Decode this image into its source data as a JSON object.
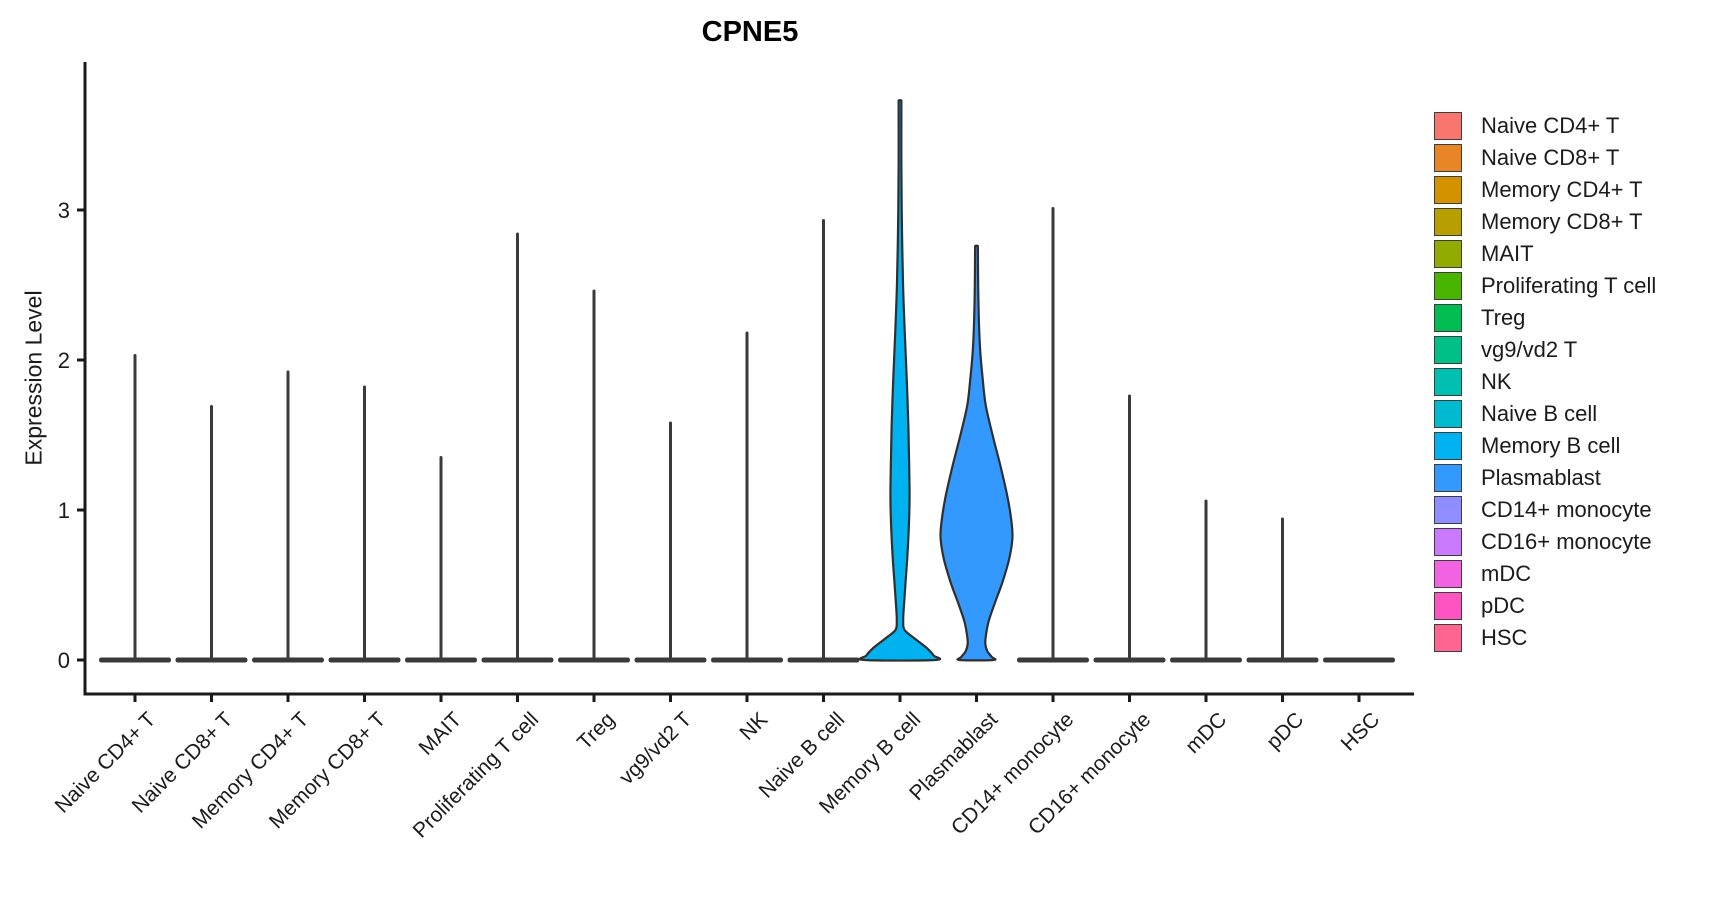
{
  "chart_data": {
    "type": "violin",
    "title": "CPNE5",
    "ylabel": "Expression Level",
    "xlabel": "",
    "ylim": [
      0,
      3.9
    ],
    "yticks": [
      0,
      1,
      2,
      3
    ],
    "grid": false,
    "legend_position": "right",
    "outline_color": "#3A3A3A",
    "axis_color": "#1a1a1a",
    "text_color": "#1b1b1b",
    "baseline_bar": {
      "halfwidth_frac": 0.47,
      "thickness": 5
    },
    "series": [
      {
        "name": "Naive CD4+ T",
        "color": "#F8766D",
        "max_expression": 2.03
      },
      {
        "name": "Naive CD8+ T",
        "color": "#E88526",
        "max_expression": 1.69
      },
      {
        "name": "Memory CD4+ T",
        "color": "#D39200",
        "max_expression": 1.92
      },
      {
        "name": "Memory CD8+ T",
        "color": "#B79F00",
        "max_expression": 1.82
      },
      {
        "name": "MAIT",
        "color": "#93AA00",
        "max_expression": 1.35
      },
      {
        "name": "Proliferating T cell",
        "color": "#49B500",
        "max_expression": 2.84
      },
      {
        "name": "Treg",
        "color": "#00BC51",
        "max_expression": 2.46
      },
      {
        "name": "vg9/vd2 T",
        "color": "#00C087",
        "max_expression": 1.58
      },
      {
        "name": "NK",
        "color": "#00C0B2",
        "max_expression": 2.18
      },
      {
        "name": "Naive B cell",
        "color": "#00BBD0",
        "max_expression": 2.93
      },
      {
        "name": "Memory B cell",
        "color": "#00B2F0",
        "max_expression": 3.73,
        "profile": [
          [
            3.73,
            0.018
          ],
          [
            3.3,
            0.018
          ],
          [
            2.9,
            0.025
          ],
          [
            2.5,
            0.04
          ],
          [
            2.15,
            0.065
          ],
          [
            1.85,
            0.09
          ],
          [
            1.55,
            0.11
          ],
          [
            1.3,
            0.12
          ],
          [
            1.08,
            0.125
          ],
          [
            0.88,
            0.115
          ],
          [
            0.68,
            0.095
          ],
          [
            0.5,
            0.07
          ],
          [
            0.35,
            0.05
          ],
          [
            0.26,
            0.042
          ],
          [
            0.2,
            0.06
          ],
          [
            0.14,
            0.2
          ],
          [
            0.08,
            0.35
          ],
          [
            0.03,
            0.44
          ],
          [
            0.0,
            0.46
          ]
        ]
      },
      {
        "name": "Plasmablast",
        "color": "#3399FF",
        "max_expression": 2.76,
        "profile": [
          [
            2.76,
            0.018
          ],
          [
            2.5,
            0.022
          ],
          [
            2.25,
            0.032
          ],
          [
            2.05,
            0.05
          ],
          [
            1.88,
            0.08
          ],
          [
            1.7,
            0.12
          ],
          [
            1.5,
            0.21
          ],
          [
            1.3,
            0.31
          ],
          [
            1.1,
            0.4
          ],
          [
            0.95,
            0.45
          ],
          [
            0.82,
            0.47
          ],
          [
            0.68,
            0.43
          ],
          [
            0.52,
            0.34
          ],
          [
            0.38,
            0.24
          ],
          [
            0.26,
            0.16
          ],
          [
            0.17,
            0.125
          ],
          [
            0.11,
            0.115
          ],
          [
            0.06,
            0.14
          ],
          [
            0.02,
            0.2
          ],
          [
            0.0,
            0.22
          ]
        ]
      },
      {
        "name": "CD14+ monocyte",
        "color": "#8F8DFF",
        "max_expression": 3.01
      },
      {
        "name": "CD16+ monocyte",
        "color": "#C97AFF",
        "max_expression": 1.76
      },
      {
        "name": "mDC",
        "color": "#F263E2",
        "max_expression": 1.06
      },
      {
        "name": "pDC",
        "color": "#FC55C2",
        "max_expression": 0.94
      },
      {
        "name": "HSC",
        "color": "#FF6590",
        "max_expression": 0
      }
    ]
  }
}
